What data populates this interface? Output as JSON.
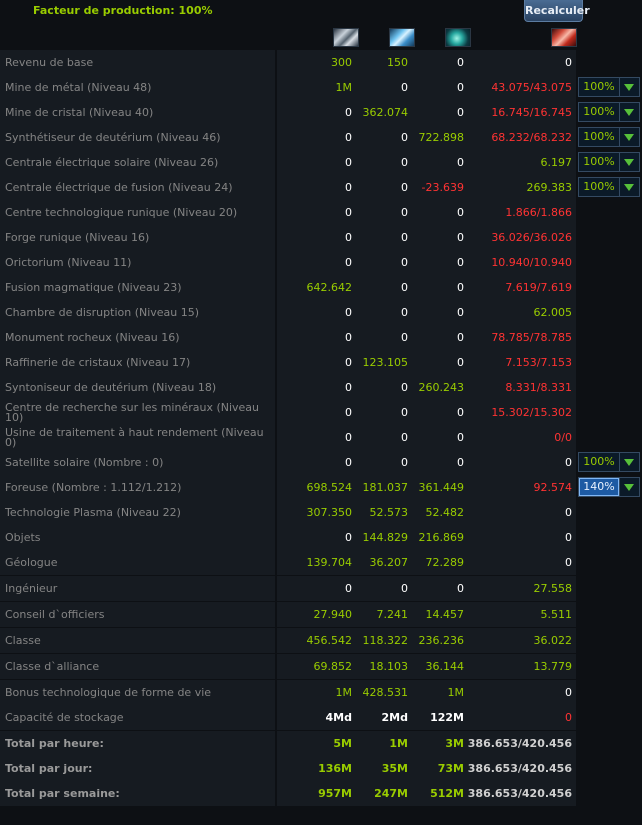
{
  "header": {
    "title": "Facteur de production: 100%",
    "recalc_label": "Recalculer",
    "resource_icons": [
      "metal-icon",
      "crystal-icon",
      "deuterium-icon",
      "energy-icon"
    ]
  },
  "rows": [
    {
      "label": "Revenu de base",
      "metal": "300",
      "crystal": "150",
      "deut": "0",
      "energy": "0"
    },
    {
      "label": "Mine de métal (Niveau 48)",
      "metal": "1M",
      "crystal": "0",
      "deut": "0",
      "energy": "43.075/43.075",
      "select": "100%"
    },
    {
      "label": "Mine de cristal (Niveau 40)",
      "metal": "0",
      "crystal": "362.074",
      "deut": "0",
      "energy": "16.745/16.745",
      "select": "100%"
    },
    {
      "label": "Synthétiseur de deutérium (Niveau 46)",
      "metal": "0",
      "crystal": "0",
      "deut": "722.898",
      "energy": "68.232/68.232",
      "select": "100%"
    },
    {
      "label": "Centrale électrique solaire (Niveau 26)",
      "metal": "0",
      "crystal": "0",
      "deut": "0",
      "energy": "6.197",
      "select": "100%"
    },
    {
      "label": "Centrale électrique de fusion (Niveau 24)",
      "metal": "0",
      "crystal": "0",
      "deut": "-23.639",
      "energy": "269.383",
      "select": "100%"
    },
    {
      "label": "Centre technologique runique (Niveau 20)",
      "metal": "0",
      "crystal": "0",
      "deut": "0",
      "energy": "1.866/1.866"
    },
    {
      "label": "Forge runique (Niveau 16)",
      "metal": "0",
      "crystal": "0",
      "deut": "0",
      "energy": "36.026/36.026"
    },
    {
      "label": "Orictorium (Niveau 11)",
      "metal": "0",
      "crystal": "0",
      "deut": "0",
      "energy": "10.940/10.940"
    },
    {
      "label": "Fusion magmatique (Niveau 23)",
      "metal": "642.642",
      "crystal": "0",
      "deut": "0",
      "energy": "7.619/7.619"
    },
    {
      "label": "Chambre de disruption (Niveau 15)",
      "metal": "0",
      "crystal": "0",
      "deut": "0",
      "energy": "62.005"
    },
    {
      "label": "Monument rocheux (Niveau 16)",
      "metal": "0",
      "crystal": "0",
      "deut": "0",
      "energy": "78.785/78.785"
    },
    {
      "label": "Raffinerie de cristaux (Niveau 17)",
      "metal": "0",
      "crystal": "123.105",
      "deut": "0",
      "energy": "7.153/7.153"
    },
    {
      "label": "Syntoniseur de deutérium (Niveau 18)",
      "metal": "0",
      "crystal": "0",
      "deut": "260.243",
      "energy": "8.331/8.331"
    },
    {
      "label": "Centre de recherche sur les minéraux (Niveau 10)",
      "metal": "0",
      "crystal": "0",
      "deut": "0",
      "energy": "15.302/15.302"
    },
    {
      "label": "Usine de traitement à haut rendement (Niveau 0)",
      "metal": "0",
      "crystal": "0",
      "deut": "0",
      "energy": "0/0"
    },
    {
      "label": "Satellite solaire (Nombre : 0)",
      "metal": "0",
      "crystal": "0",
      "deut": "0",
      "energy": "0",
      "select": "100%"
    },
    {
      "label": "Foreuse (Nombre : 1.112/1.212)",
      "metal": "698.524",
      "crystal": "181.037",
      "deut": "361.449",
      "energy": "92.574",
      "select": "140%"
    },
    {
      "label": "Technologie Plasma (Niveau 22)",
      "metal": "307.350",
      "crystal": "52.573",
      "deut": "52.482",
      "energy": "0"
    },
    {
      "label": "Objets",
      "metal": "0",
      "crystal": "144.829",
      "deut": "216.869",
      "energy": "0"
    },
    {
      "label": "Géologue",
      "metal": "139.704",
      "crystal": "36.207",
      "deut": "72.289",
      "energy": "0",
      "avatar": "geologist-portrait-icon"
    },
    {
      "label": "Ingénieur",
      "metal": "0",
      "crystal": "0",
      "deut": "0",
      "energy": "27.558",
      "avatar": "engineer-portrait-icon"
    },
    {
      "label": "Conseil d`officiers",
      "metal": "27.940",
      "crystal": "7.241",
      "deut": "14.457",
      "energy": "5.511",
      "avatar": "officers-council-icon"
    },
    {
      "label": "Classe",
      "metal": "456.542",
      "crystal": "118.322",
      "deut": "236.236",
      "energy": "36.022",
      "avatar": "class-emblem-icon"
    },
    {
      "label": "Classe d`alliance",
      "metal": "69.852",
      "crystal": "18.103",
      "deut": "36.144",
      "energy": "13.779",
      "avatar": "alliance-class-emblem-icon"
    },
    {
      "label": "Bonus technologique de forme de vie",
      "metal": "1M",
      "crystal": "428.531",
      "deut": "1M",
      "energy": "0"
    },
    {
      "label": "Capacité de stockage",
      "metal": "4Md",
      "crystal": "2Md",
      "deut": "122M",
      "energy": "0"
    }
  ],
  "totals": [
    {
      "label": "Total par heure:",
      "metal": "5M",
      "crystal": "1M",
      "deut": "3M",
      "energy": "386.653/420.456"
    },
    {
      "label": "Total par jour:",
      "metal": "136M",
      "crystal": "35M",
      "deut": "73M",
      "energy": "386.653/420.456"
    },
    {
      "label": "Total par semaine:",
      "metal": "957M",
      "crystal": "247M",
      "deut": "512M",
      "energy": "386.653/420.456"
    }
  ],
  "colors": {
    "positive": "#99cc00",
    "negative": "#ff3333",
    "row_bg": "#161b21",
    "page_bg": "#0d1014"
  }
}
